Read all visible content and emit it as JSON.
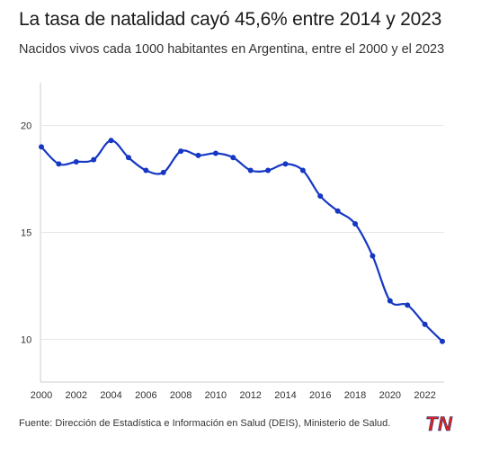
{
  "header": {
    "title": "La tasa de natalidad cayó 45,6% entre 2014 y 2023",
    "subtitle": "Nacidos vivos cada 1000 habitantes en Argentina, entre el 2000 y el 2023"
  },
  "footer": {
    "source": "Fuente: Dirección de Estadística e Información en Salud (DEIS), Ministerio de Salud.",
    "logo_text": "TN"
  },
  "colors": {
    "line": "#1537c4",
    "grid": "#e6e6e6",
    "axis": "#cccccc",
    "logo_primary": "#e2231a",
    "logo_secondary": "#1d3a8a"
  },
  "chart_data": {
    "type": "line",
    "x": [
      2000,
      2001,
      2002,
      2003,
      2004,
      2005,
      2006,
      2007,
      2008,
      2009,
      2010,
      2011,
      2012,
      2013,
      2014,
      2015,
      2016,
      2017,
      2018,
      2019,
      2020,
      2021,
      2022,
      2023
    ],
    "series": [
      {
        "values": [
          19.0,
          18.2,
          18.3,
          18.4,
          19.3,
          18.5,
          17.9,
          17.8,
          18.8,
          18.6,
          18.7,
          18.5,
          17.9,
          17.9,
          18.2,
          17.9,
          16.7,
          16.0,
          15.4,
          13.9,
          11.8,
          11.6,
          10.7,
          9.9
        ]
      }
    ],
    "xlim": [
      2000,
      2023
    ],
    "ylim": [
      8,
      22
    ],
    "x_ticks": [
      2000,
      2002,
      2004,
      2006,
      2008,
      2010,
      2012,
      2014,
      2016,
      2018,
      2020,
      2022
    ],
    "y_ticks": [
      10,
      15,
      20
    ],
    "grid": "horizontal",
    "title": "La tasa de natalidad cayó 45,6% entre 2014 y 2023",
    "xlabel": "",
    "ylabel": ""
  }
}
